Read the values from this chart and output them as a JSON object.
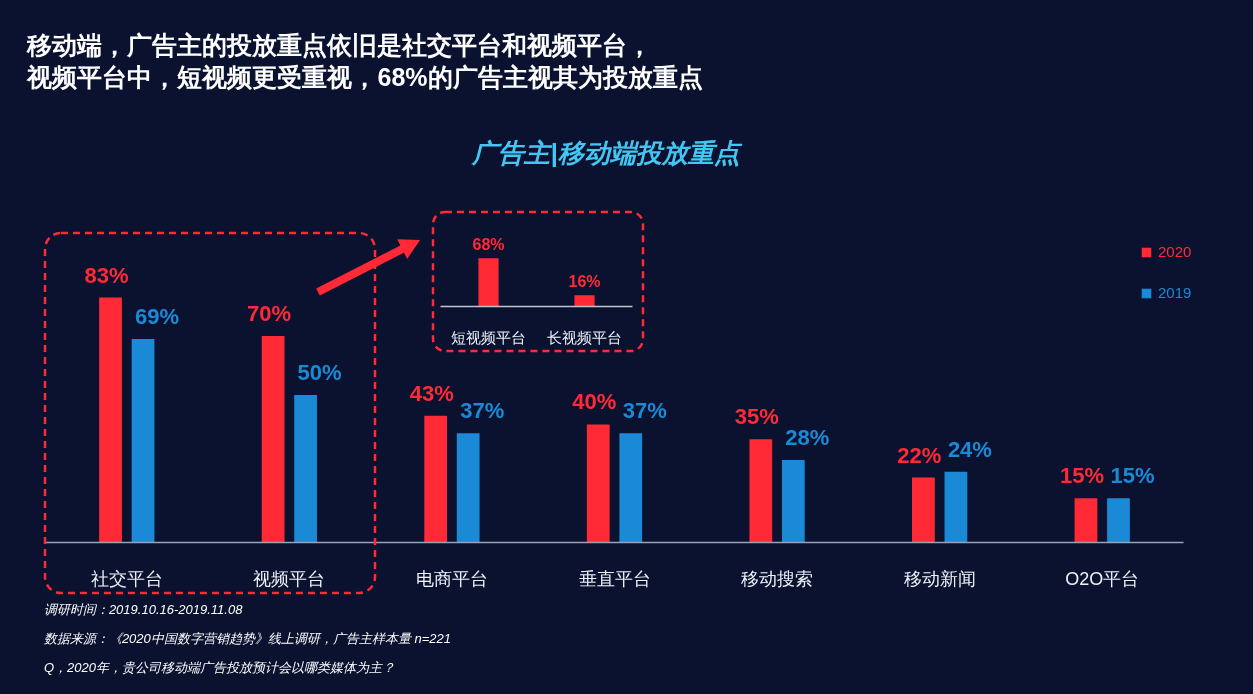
{
  "chart_data": [
    {
      "type": "bar",
      "title": "移动端，广告主的投放重点依旧是社交平台和视频平台，视频平台中，短视频更受重视，68%的广告主视其为投放重点",
      "subtitle": "广告主|移动端投放重点",
      "categories": [
        "社交平台",
        "视频平台",
        "电商平台",
        "垂直平台",
        "移动搜索",
        "移动新闻",
        "O2O平台"
      ],
      "series": [
        {
          "name": "2020",
          "color": "#ff2a35",
          "values": [
            83,
            70,
            43,
            40,
            35,
            22,
            15
          ],
          "value_labels": [
            "83%",
            "70%",
            "43%",
            "40%",
            "35%",
            "22%",
            "15%"
          ]
        },
        {
          "name": "2019",
          "color": "#1a8ad6",
          "values": [
            69,
            50,
            37,
            37,
            28,
            24,
            15
          ],
          "value_labels": [
            "69%",
            "50%",
            "37%",
            "37%",
            "28%",
            "24%",
            "15%"
          ]
        }
      ],
      "legend": "top right",
      "annotations": [
        "调研时间：2019.10.16-2019.11.08",
        "数据来源：《2020中国数字营销趋势》线上调研，广告主样本量 n=221",
        "Q，2020年，贵公司移动端广告投放预计会以哪类媒体为主？"
      ]
    },
    {
      "type": "bar",
      "categories": [
        "短视频平台",
        "长视频平台"
      ],
      "series": [
        {
          "color": "#ff2a35",
          "values": [
            68,
            16
          ],
          "value_labels": [
            "68%",
            "16%"
          ]
        }
      ]
    }
  ]
}
